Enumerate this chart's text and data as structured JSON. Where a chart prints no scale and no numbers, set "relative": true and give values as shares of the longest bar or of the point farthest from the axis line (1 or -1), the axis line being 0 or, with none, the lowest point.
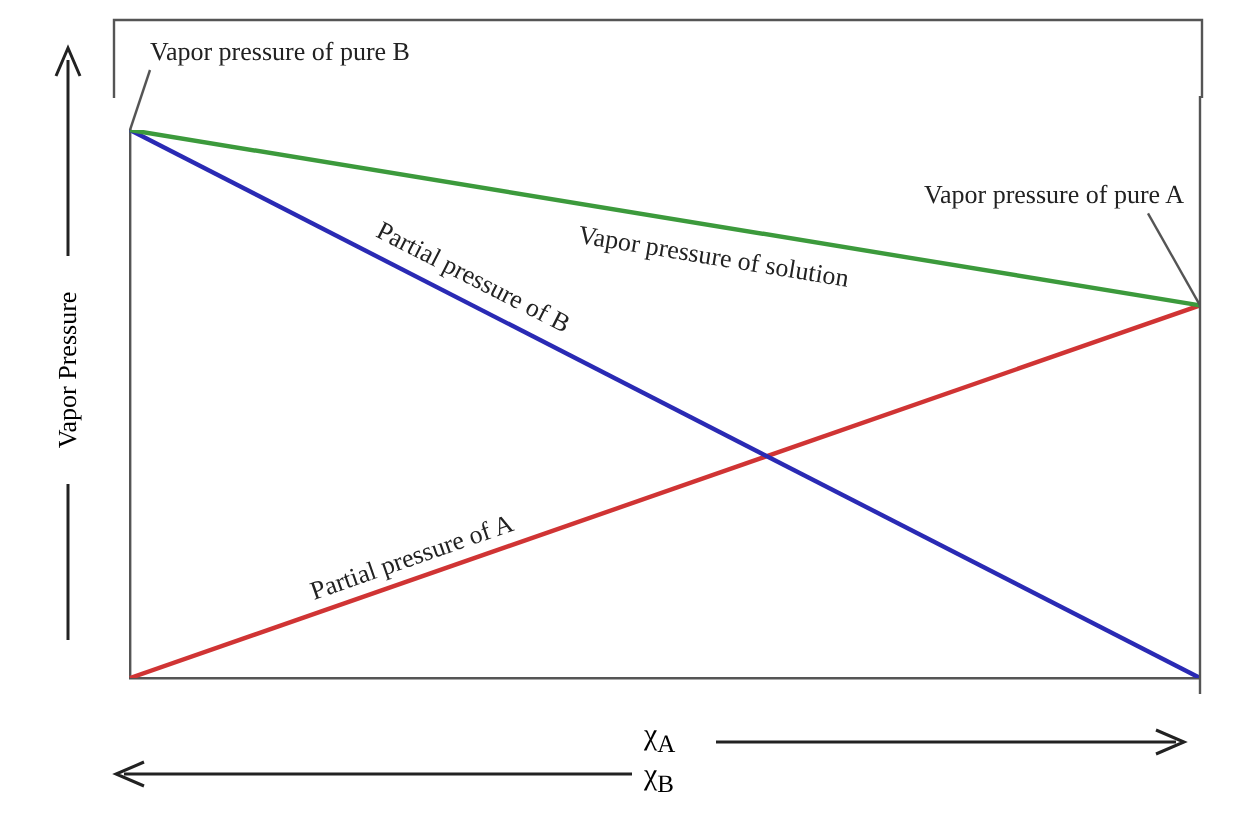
{
  "chart_data": {
    "type": "line",
    "relative": true,
    "xlabel": "χ$_{A}$",
    "ylabel": "Vapor Pressure",
    "categories": [
      null,
      null
    ],
    "series": [
      {
        "color": "#3c9a3c",
        "values": [
          1,
          0.68
        ]
      },
      {
        "color": "#2a2ab4",
        "values": [
          1,
          0
        ]
      },
      {
        "color": "#d03434",
        "values": [
          0,
          0.68
        ]
      }
    ],
    "annotations": [
      "Vapor pressure of pure B",
      "Vapor pressure of solution",
      "Partial pressure of B",
      "Partial pressure of A",
      "Vapor pressure of pure A",
      "χ$_{B}$"
    ],
    "marker": "none",
    "legend": false
  }
}
